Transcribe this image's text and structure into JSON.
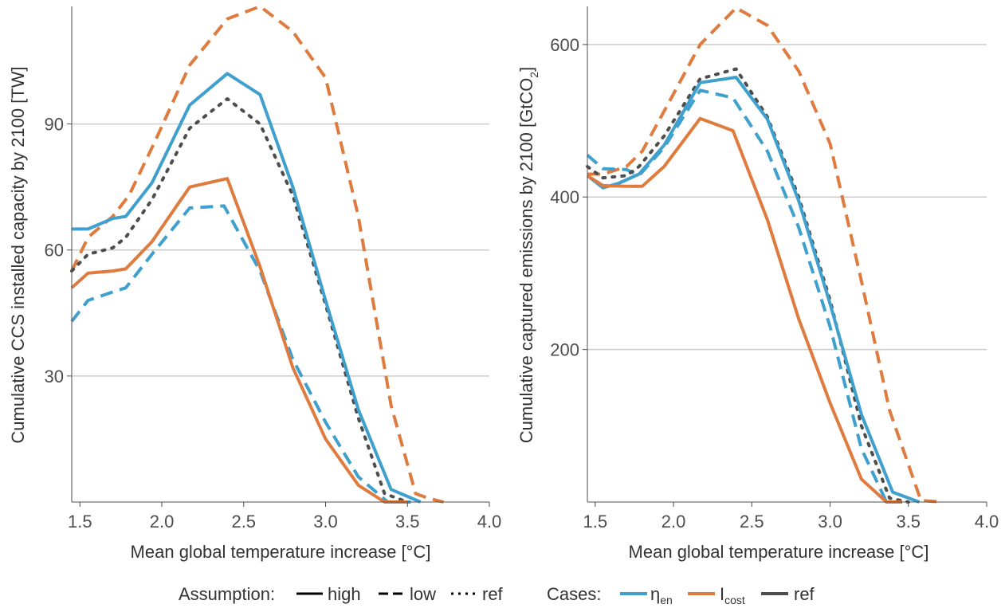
{
  "colors": {
    "eta_en": "#3fa0cd",
    "I_cost": "#e07b3f",
    "ref": "#4d4d4d",
    "grid": "#cccccc",
    "axis": "#4d4d4d"
  },
  "legend": {
    "assumption_title": "Assumption:",
    "assumption_items": [
      {
        "label": "high",
        "linetype": "solid"
      },
      {
        "label": "low",
        "linetype": "dashed"
      },
      {
        "label": "ref",
        "linetype": "dotted"
      }
    ],
    "cases_title": "Cases:",
    "cases_items": [
      {
        "main": "η",
        "sub": "en",
        "color": "#3fa0cd"
      },
      {
        "main": "I",
        "sub": "cost",
        "color": "#e07b3f"
      },
      {
        "main": "ref",
        "sub": "",
        "color": "#4d4d4d"
      }
    ]
  },
  "chart_data": [
    {
      "type": "line",
      "title": "",
      "xlabel": "Mean global temperature increase [°C]",
      "ylabel": "Cumulative CCS installed capacity by 2100 [TW]",
      "xlim": [
        1.45,
        4.0
      ],
      "ylim": [
        0,
        118
      ],
      "xticks": [
        1.5,
        2.0,
        2.5,
        3.0,
        3.5,
        4.0
      ],
      "xtick_labels": [
        "1.5",
        "2.0",
        "2.5",
        "3.0",
        "3.5",
        "4.0"
      ],
      "yticks": [
        30,
        60,
        90
      ],
      "ytick_labels": [
        "30",
        "60",
        "90"
      ],
      "grid": "horizontal",
      "series": [
        {
          "case": "eta_en",
          "assumption": "high",
          "x": [
            1.45,
            1.55,
            1.7,
            1.78,
            1.94,
            2.17,
            2.4,
            2.6,
            2.8,
            3.0,
            3.2,
            3.4,
            3.58
          ],
          "y": [
            65,
            65,
            67.5,
            68,
            76,
            94.5,
            102,
            97,
            75,
            48,
            22,
            3,
            0
          ]
        },
        {
          "case": "eta_en",
          "assumption": "low",
          "x": [
            1.45,
            1.55,
            1.7,
            1.78,
            1.94,
            2.17,
            2.38,
            2.6,
            2.8,
            3.0,
            3.2,
            3.38,
            3.52
          ],
          "y": [
            43,
            48,
            50,
            51,
            59,
            70,
            70.5,
            55,
            34,
            19,
            6,
            0,
            0
          ]
        },
        {
          "case": "I_cost",
          "assumption": "high",
          "x": [
            1.45,
            1.55,
            1.7,
            1.78,
            1.94,
            2.17,
            2.4,
            2.6,
            2.8,
            3.0,
            3.2,
            3.36,
            3.5
          ],
          "y": [
            51,
            54.5,
            55,
            55.5,
            62,
            75,
            77,
            56,
            32,
            15,
            4,
            0,
            0
          ]
        },
        {
          "case": "I_cost",
          "assumption": "low",
          "x": [
            1.45,
            1.55,
            1.7,
            1.8,
            1.96,
            2.17,
            2.4,
            2.6,
            2.8,
            3.0,
            3.2,
            3.4,
            3.55,
            3.62,
            3.72
          ],
          "y": [
            55,
            63,
            68,
            73,
            86,
            104,
            115,
            118,
            112,
            101,
            68,
            23,
            2,
            1,
            0
          ]
        },
        {
          "case": "ref",
          "assumption": "ref",
          "x": [
            1.45,
            1.55,
            1.7,
            1.78,
            1.94,
            2.17,
            2.4,
            2.6,
            2.8,
            3.0,
            3.2,
            3.36,
            3.5
          ],
          "y": [
            55,
            59,
            60.5,
            63,
            72,
            89,
            96,
            90,
            73,
            47,
            20,
            2,
            0
          ]
        }
      ]
    },
    {
      "type": "line",
      "title": "",
      "xlabel": "Mean global temperature increase [°C]",
      "ylabel_main": "Cumulative captured emissions by 2100 [GtCO",
      "ylabel_sub": "2",
      "ylabel_end": "]",
      "xlim": [
        1.45,
        4.0
      ],
      "ylim": [
        0,
        650
      ],
      "xticks": [
        1.5,
        2.0,
        2.5,
        3.0,
        3.5,
        4.0
      ],
      "xtick_labels": [
        "1.5",
        "2.0",
        "2.5",
        "3.0",
        "3.5",
        "4.0"
      ],
      "yticks": [
        200,
        400,
        600
      ],
      "ytick_labels": [
        "200",
        "400",
        "600"
      ],
      "grid": "horizontal",
      "series": [
        {
          "case": "eta_en",
          "assumption": "high",
          "x": [
            1.45,
            1.55,
            1.65,
            1.78,
            1.94,
            2.17,
            2.4,
            2.6,
            2.8,
            3.0,
            3.2,
            3.4,
            3.57
          ],
          "y": [
            428,
            412,
            418,
            430,
            468,
            550,
            557,
            502,
            395,
            260,
            115,
            13,
            0
          ]
        },
        {
          "case": "eta_en",
          "assumption": "low",
          "x": [
            1.45,
            1.55,
            1.7,
            1.78,
            1.94,
            2.17,
            2.38,
            2.6,
            2.8,
            3.0,
            3.2,
            3.36,
            3.46
          ],
          "y": [
            455,
            437,
            436,
            428,
            465,
            540,
            530,
            460,
            360,
            230,
            70,
            0,
            0
          ]
        },
        {
          "case": "I_cost",
          "assumption": "high",
          "x": [
            1.45,
            1.55,
            1.7,
            1.8,
            1.94,
            2.17,
            2.38,
            2.6,
            2.8,
            3.0,
            3.2,
            3.36,
            3.46
          ],
          "y": [
            428,
            415,
            414,
            414,
            440,
            503,
            487,
            370,
            240,
            130,
            30,
            0,
            0
          ]
        },
        {
          "case": "I_cost",
          "assumption": "low",
          "x": [
            1.45,
            1.55,
            1.7,
            1.8,
            1.96,
            2.17,
            2.4,
            2.6,
            2.8,
            3.0,
            3.2,
            3.38,
            3.58,
            3.65,
            3.72
          ],
          "y": [
            430,
            430,
            440,
            460,
            520,
            600,
            648,
            625,
            565,
            470,
            290,
            120,
            2,
            1,
            0
          ]
        },
        {
          "case": "ref",
          "assumption": "ref",
          "x": [
            1.45,
            1.55,
            1.7,
            1.78,
            1.94,
            2.17,
            2.4,
            2.6,
            2.8,
            3.0,
            3.2,
            3.38,
            3.5
          ],
          "y": [
            440,
            425,
            428,
            440,
            480,
            555,
            568,
            505,
            400,
            265,
            100,
            5,
            0
          ]
        }
      ]
    }
  ]
}
